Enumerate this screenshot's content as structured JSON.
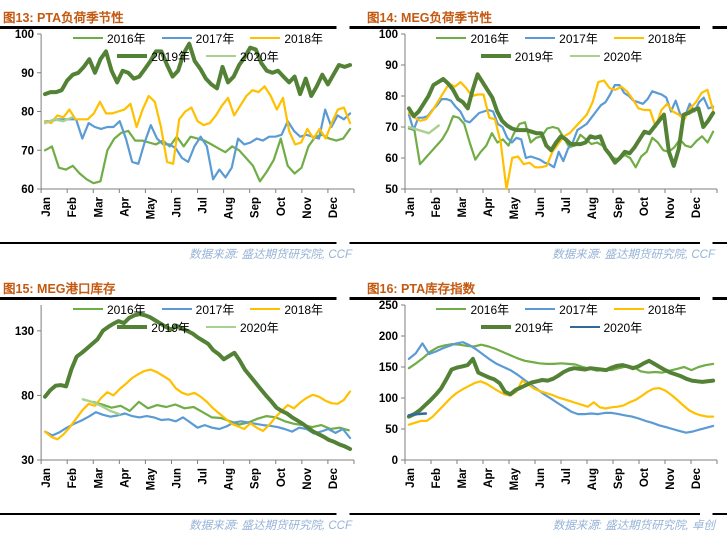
{
  "months": [
    "Jan",
    "Feb",
    "Mar",
    "Apr",
    "May",
    "Jun",
    "Jul",
    "Aug",
    "Sep",
    "Oct",
    "Nov",
    "Dec"
  ],
  "palette": {
    "y2016": "#70AD47",
    "y2017": "#5B9BD5",
    "y2018": "#FFC000",
    "y2019": "#538135",
    "y2020_green": "#A9D18E",
    "y2020_blue": "#31699B",
    "title": "#C45911",
    "source": "#95B3D7",
    "axis": "#7F7F7F"
  },
  "chart_data": [
    {
      "type": "line",
      "title": "图13: PTA负荷季节性",
      "source": "数据来源: 盛达期货研究院, CCF",
      "xlabel": "",
      "ylabel": "",
      "ylim": [
        60,
        100
      ],
      "yticks": [
        60,
        70,
        80,
        90,
        100
      ],
      "grid": false,
      "legend_position": "top",
      "series": [
        {
          "label": "2016年",
          "color": "#70AD47",
          "width": 2.2,
          "values": [
            70,
            71,
            65.5,
            65,
            66,
            64,
            62.5,
            61.5,
            62,
            70,
            73,
            74.5,
            75,
            72.5,
            72.5,
            72,
            71.5,
            72.5,
            71,
            73.5,
            71,
            73.5,
            73,
            72.5,
            71.5,
            70.5,
            69.5,
            71,
            70,
            68,
            66,
            62,
            64.5,
            67.5,
            73,
            66,
            64,
            65.5,
            71,
            73.5,
            74,
            73,
            72.5,
            73,
            75.5
          ]
        },
        {
          "label": "2017年",
          "color": "#5B9BD5",
          "width": 2.2,
          "values": [
            77.5,
            77.5,
            78,
            78,
            78,
            78,
            73,
            77,
            76,
            75.5,
            76,
            76,
            77.5,
            73,
            67,
            66.5,
            72,
            76.5,
            73,
            71.5,
            71.5,
            70.5,
            68,
            67,
            71,
            73.5,
            71,
            62.5,
            65,
            63,
            65.5,
            73,
            71.5,
            72,
            73,
            72.5,
            73.5,
            73.5,
            74,
            77.5,
            75,
            73.5,
            74,
            73.5,
            73,
            80.5,
            76,
            79,
            78,
            79.5
          ]
        },
        {
          "label": "2018年",
          "color": "#FFC000",
          "width": 2.2,
          "values": [
            77.5,
            77,
            79,
            78.5,
            80.5,
            78,
            78,
            78,
            79.5,
            82.5,
            79.5,
            79.5,
            80,
            80.5,
            82,
            76,
            80.5,
            84,
            82.5,
            76,
            67,
            66.5,
            78,
            80,
            81,
            77.5,
            76.5,
            77,
            79,
            81.5,
            83.5,
            79,
            81.5,
            84,
            85.5,
            85,
            86.5,
            84,
            80.5,
            83.5,
            75,
            71.5,
            72,
            75.5,
            73,
            75.5,
            73,
            77,
            80.5,
            81,
            77
          ]
        },
        {
          "label": "2019年",
          "color": "#538135",
          "width": 4,
          "values": [
            84.5,
            85,
            85,
            85.5,
            88,
            89.5,
            90,
            91.5,
            93.5,
            90,
            93.5,
            95.5,
            90.5,
            87.5,
            90.5,
            90,
            88.5,
            89,
            91,
            93,
            95.5,
            95.5,
            92,
            89,
            90.5,
            95,
            97.5,
            93,
            91,
            88.5,
            87,
            86,
            91.5,
            87.5,
            89,
            92,
            94,
            96.5,
            96,
            92.5,
            90.5,
            90,
            90.5,
            89,
            87.5,
            89,
            84.5,
            88.5,
            84,
            86.5,
            89.5,
            87,
            89.5,
            92,
            91.5,
            92
          ]
        },
        {
          "label": "2020年",
          "color": "#A9D18E",
          "width": 2.4,
          "start": 0.15,
          "end": 1.2,
          "values": [
            77,
            78,
            77.5,
            78.5
          ]
        }
      ]
    },
    {
      "type": "line",
      "title": "图14: MEG负荷季节性",
      "source": "数据来源: 盛达期货研究院, CCF",
      "xlabel": "",
      "ylabel": "",
      "ylim": [
        50,
        100
      ],
      "yticks": [
        50,
        60,
        70,
        80,
        90,
        100
      ],
      "grid": false,
      "legend_position": "top",
      "series": [
        {
          "label": "2016年",
          "color": "#70AD47",
          "width": 2.2,
          "values": [
            69.5,
            69,
            58,
            60,
            62,
            64,
            66,
            69,
            73.5,
            73,
            71,
            65,
            59.5,
            62,
            64,
            68,
            65,
            66,
            64,
            68,
            71,
            71.5,
            65,
            66.5,
            67,
            69.5,
            70,
            69.5,
            66.5,
            63.5,
            64,
            67.5,
            66,
            64.5,
            65,
            64,
            62,
            60,
            59.5,
            61,
            60,
            57,
            60.5,
            62,
            66.5,
            65,
            62.5,
            62,
            63.5,
            66,
            64,
            63.5,
            65.5,
            67,
            65,
            68.5
          ]
        },
        {
          "label": "2017年",
          "color": "#5B9BD5",
          "width": 2.2,
          "values": [
            74,
            69,
            73,
            73,
            73.5,
            75.5,
            77,
            79,
            79,
            78.5,
            76.5,
            75,
            72,
            71.5,
            73,
            74.5,
            75,
            75.5,
            75,
            71,
            70,
            66.5,
            65,
            66.5,
            66,
            60,
            60.5,
            60,
            59.5,
            58.5,
            58,
            57,
            62,
            59,
            63,
            65,
            69,
            70,
            71,
            73,
            75,
            77,
            78,
            80.5,
            83.5,
            83.5,
            81,
            80,
            78.5,
            78,
            77.5,
            79,
            81.5,
            81,
            80.5,
            79.5,
            75,
            78.5,
            74,
            73.5,
            77.5,
            75,
            78,
            79.5,
            76,
            76.5
          ]
        },
        {
          "label": "2018年",
          "color": "#FFC000",
          "width": 2.2,
          "values": [
            74.5,
            73,
            72,
            72.5,
            75,
            78,
            81,
            84,
            83,
            84.5,
            82.5,
            80,
            80.5,
            80.5,
            73,
            72.5,
            65,
            50,
            60,
            60.5,
            58,
            58.5,
            57,
            57,
            57.5,
            62,
            64.5,
            67,
            68,
            70,
            72,
            74,
            78,
            84.5,
            85,
            82.5,
            82,
            83,
            81.5,
            79,
            76,
            75.5,
            75.5,
            70,
            75.5,
            77.5,
            75,
            74,
            72.5,
            76,
            78,
            81,
            82,
            75.5
          ]
        },
        {
          "label": "2019年",
          "color": "#538135",
          "width": 4,
          "values": [
            76,
            73.5,
            75,
            77.5,
            80,
            83.5,
            84.5,
            85.5,
            84,
            82,
            79,
            78,
            76,
            82,
            87,
            84.5,
            82,
            79.5,
            75,
            72,
            70.5,
            69.5,
            69,
            69,
            69,
            68.5,
            68,
            68,
            64,
            62.5,
            65,
            67,
            66,
            64.5,
            64.5,
            64.5,
            65,
            67,
            66.5,
            67,
            63,
            61,
            58.5,
            60,
            62,
            61.5,
            63.5,
            66,
            68.5,
            68,
            70,
            72,
            74,
            62,
            57.5,
            63,
            74,
            74.5,
            75.5,
            76,
            70,
            72,
            74.5
          ]
        },
        {
          "label": "2020年",
          "color": "#A9D18E",
          "width": 2.4,
          "start": 0.15,
          "end": 1.3,
          "values": [
            70,
            69,
            68,
            70.5
          ]
        }
      ]
    },
    {
      "type": "line",
      "title": "图15: MEG港口库存",
      "source": "数据来源: 盛达期货研究院, CCF",
      "xlabel": "",
      "ylabel": "",
      "ylim": [
        30,
        150
      ],
      "yticks": [
        30,
        80,
        130
      ],
      "grid": false,
      "legend_position": "top",
      "series": [
        {
          "label": "2016年",
          "color": "#70AD47",
          "width": 2.2,
          "start": 2.0,
          "end": 11.8,
          "values": [
            75,
            73,
            70.5,
            72,
            68,
            75,
            70,
            72.5,
            71,
            73,
            70,
            71,
            67,
            63,
            62.5,
            60,
            57.5,
            59,
            62,
            64,
            63,
            60,
            58,
            57,
            55.5,
            57,
            54,
            55,
            53
          ]
        },
        {
          "label": "2017年",
          "color": "#5B9BD5",
          "width": 2.2,
          "values": [
            52,
            49,
            51.5,
            55,
            58,
            60.5,
            63.5,
            67,
            65,
            63.5,
            64.5,
            66,
            64,
            63,
            64,
            63,
            61,
            61.5,
            60,
            63,
            59,
            55,
            57,
            55,
            54,
            56,
            59,
            60,
            59,
            58,
            57,
            56.5,
            55.5,
            54,
            52,
            55,
            54,
            50.5,
            52,
            54,
            51,
            54,
            47
          ]
        },
        {
          "label": "2018年",
          "color": "#FFC000",
          "width": 2.2,
          "values": [
            52,
            48,
            46,
            50,
            55.5,
            62,
            68.5,
            73.5,
            72,
            78,
            82.5,
            80,
            85,
            89,
            93.5,
            96.5,
            99,
            100,
            98,
            95,
            92,
            85.5,
            82,
            80.5,
            82,
            79,
            75,
            70,
            66,
            62,
            58,
            56,
            54,
            58.5,
            55,
            52.5,
            57,
            63,
            68,
            72.5,
            70,
            74.5,
            78,
            80.5,
            79,
            76,
            74,
            73.5,
            76.5,
            83
          ]
        },
        {
          "label": "2019年",
          "color": "#538135",
          "width": 4,
          "values": [
            79,
            84,
            87.5,
            88,
            87,
            100,
            110,
            113,
            116.5,
            120,
            123.5,
            130,
            133,
            135.5,
            137.5,
            136,
            140,
            142,
            143,
            142,
            140.5,
            138,
            135.5,
            133,
            131,
            134,
            132,
            130,
            128,
            125,
            122.5,
            120,
            115,
            112,
            108,
            110.5,
            113,
            107,
            100,
            95,
            90,
            85,
            80,
            75.5,
            70.5,
            68,
            66,
            63,
            60.5,
            58,
            55,
            52,
            50,
            48,
            45.5,
            44,
            42,
            40.5,
            38.5
          ]
        },
        {
          "label": "2020年",
          "color": "#A9D18E",
          "width": 2.4,
          "start": 1.6,
          "end": 3.0,
          "values": [
            77,
            75,
            72,
            68,
            65.5
          ]
        }
      ]
    },
    {
      "type": "line",
      "title": "图16: PTA库存指数",
      "source": "数据来源: 盛达期货研究院, 卓创",
      "xlabel": "",
      "ylabel": "",
      "ylim": [
        0,
        250
      ],
      "yticks": [
        0,
        50,
        100,
        150,
        200,
        250
      ],
      "grid": false,
      "legend_position": "top",
      "series": [
        {
          "label": "2016年",
          "color": "#70AD47",
          "width": 2.2,
          "values": [
            148,
            156,
            165,
            175,
            182,
            185,
            187,
            186,
            184,
            183,
            186,
            183,
            179,
            174,
            169,
            164,
            160,
            158,
            156,
            155,
            155,
            156,
            155,
            154,
            150,
            147,
            144,
            146,
            145,
            148,
            151,
            150,
            143,
            141,
            142,
            141,
            144,
            147,
            150,
            145,
            150,
            153,
            155
          ]
        },
        {
          "label": "2017年",
          "color": "#5B9BD5",
          "width": 2.2,
          "values": [
            163,
            172,
            188,
            171,
            175,
            180,
            184,
            188,
            190,
            185,
            178,
            170,
            162,
            155,
            150,
            145,
            138,
            130,
            122,
            114,
            106,
            99,
            92,
            85,
            78,
            74,
            74,
            75,
            74,
            76,
            76,
            74,
            72,
            70,
            67,
            63,
            60,
            56,
            53,
            50,
            47,
            44,
            46,
            49,
            52,
            55
          ]
        },
        {
          "label": "2018年",
          "color": "#FFC000",
          "width": 2.2,
          "values": [
            57,
            60,
            63,
            63,
            70,
            80,
            90,
            100,
            108,
            114,
            119,
            124,
            127,
            123,
            117,
            111,
            106,
            104,
            110,
            128,
            122,
            115,
            111,
            108,
            105,
            101,
            98,
            95,
            92,
            89,
            86,
            93,
            85,
            83,
            85,
            86,
            88,
            93,
            97,
            103,
            110,
            115,
            116,
            112,
            105,
            97,
            88,
            80,
            75,
            72,
            70,
            70
          ]
        },
        {
          "label": "2019年",
          "color": "#538135",
          "width": 4,
          "values": [
            70,
            74,
            80,
            88,
            96,
            105,
            115,
            130,
            146,
            149,
            151,
            153,
            163,
            141,
            137,
            133,
            130,
            124,
            110,
            106,
            113,
            117,
            121,
            125,
            127,
            129,
            128,
            131,
            136,
            142,
            146,
            148,
            147,
            146,
            148,
            147,
            146,
            145,
            149,
            152,
            153,
            151,
            148,
            151,
            156,
            160,
            155,
            150,
            145,
            141,
            138,
            135,
            131,
            128,
            127,
            126,
            127,
            128
          ]
        },
        {
          "label": "2020年",
          "color": "#31699B",
          "width": 2.6,
          "start": 0.15,
          "end": 0.8,
          "values": [
            72,
            74,
            75
          ]
        }
      ]
    }
  ]
}
